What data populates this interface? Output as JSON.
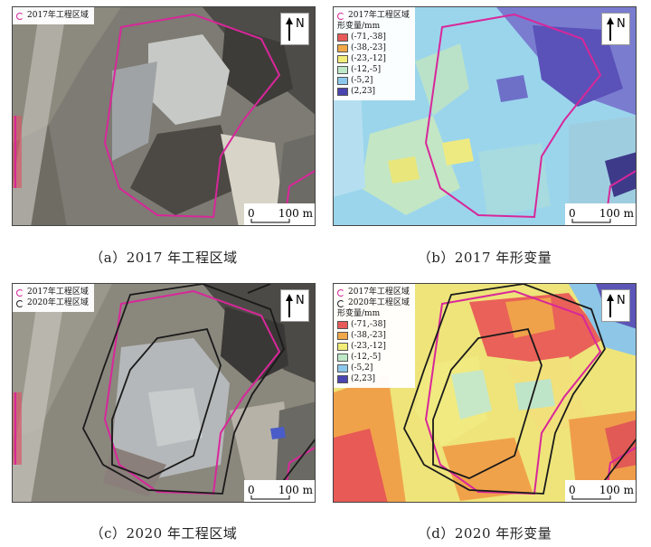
{
  "panels": [
    {
      "id": "a",
      "caption": "（a）2017 年工程区域",
      "legend_boundaries": [
        "2017年工程区域"
      ],
      "legend_title": "",
      "show_deformation_legend": false,
      "north": "N",
      "scale_zero": "0",
      "scale_distance": "100 m"
    },
    {
      "id": "b",
      "caption": "（b）2017 年形变量",
      "legend_boundaries": [
        "2017年工程区域"
      ],
      "legend_title": "形变量/mm",
      "show_deformation_legend": true,
      "north": "N",
      "scale_zero": "0",
      "scale_distance": "100 m"
    },
    {
      "id": "c",
      "caption": "（c）2020 年工程区域",
      "legend_boundaries": [
        "2017年工程区域",
        "2020年工程区域"
      ],
      "legend_title": "",
      "show_deformation_legend": false,
      "north": "N",
      "scale_zero": "0",
      "scale_distance": "100 m"
    },
    {
      "id": "d",
      "caption": "（d）2020 年形变量",
      "legend_boundaries": [
        "2017年工程区域",
        "2020年工程区域"
      ],
      "legend_title": "形变量/mm",
      "show_deformation_legend": true,
      "north": "N",
      "scale_zero": "0",
      "scale_distance": "100 m"
    }
  ],
  "deformation_classes": [
    {
      "label": "(-71,-38]",
      "color": "#e85a5a"
    },
    {
      "label": "(-38,-23]",
      "color": "#f0a848"
    },
    {
      "label": "(-23,-12]",
      "color": "#f2ec78"
    },
    {
      "label": "(-12,-5]",
      "color": "#bfe8c8"
    },
    {
      "label": "(-5,2]",
      "color": "#8cc8ec"
    },
    {
      "label": "(2,23]",
      "color": "#4a44b0"
    }
  ],
  "boundary_colors": {
    "2017": "#d8279a",
    "2020": "#1a1a1a"
  }
}
